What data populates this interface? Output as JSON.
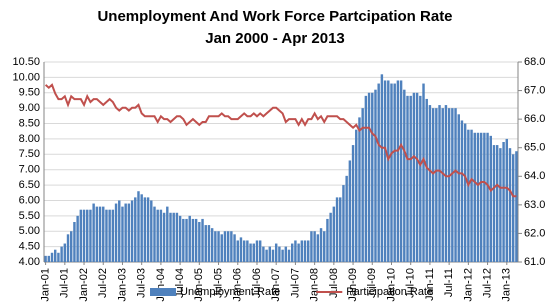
{
  "chart_data": {
    "type": "bar_line",
    "title": "Unemployment And Work Force Partcipation Rate",
    "subtitle": "Jan 2000 - Apr 2013",
    "categories": [
      "Jan-01",
      null,
      null,
      null,
      null,
      null,
      "Jul-01",
      null,
      null,
      null,
      null,
      null,
      "Jan-02",
      null,
      null,
      null,
      null,
      null,
      "Jul-02",
      null,
      null,
      null,
      null,
      null,
      "Jan-03",
      null,
      null,
      null,
      null,
      null,
      "Jul-03",
      null,
      null,
      null,
      null,
      null,
      "Jan-04",
      null,
      null,
      null,
      null,
      null,
      "Jul-04",
      null,
      null,
      null,
      null,
      null,
      "Jan-05",
      null,
      null,
      null,
      null,
      null,
      "Jul-05",
      null,
      null,
      null,
      null,
      null,
      "Jan-06",
      null,
      null,
      null,
      null,
      null,
      "Jul-06",
      null,
      null,
      null,
      null,
      null,
      "Jan-07",
      null,
      null,
      null,
      null,
      null,
      "Jul-07",
      null,
      null,
      null,
      null,
      null,
      "Jan-08",
      null,
      null,
      null,
      null,
      null,
      "Jul-08",
      null,
      null,
      null,
      null,
      null,
      "Jan-09",
      null,
      null,
      null,
      null,
      null,
      "Jul-09",
      null,
      null,
      null,
      null,
      null,
      "Jan-10",
      null,
      null,
      null,
      null,
      null,
      "Jul-10",
      null,
      null,
      null,
      null,
      null,
      "Jan-11",
      null,
      null,
      null,
      null,
      null,
      "Jul-11",
      null,
      null,
      null,
      null,
      null,
      "Jan-12",
      null,
      null,
      null,
      null,
      null,
      "Jul-12",
      null,
      null,
      null,
      null,
      null,
      "Jan-13",
      null,
      null,
      null
    ],
    "series": [
      {
        "name": "Unemployment Rate",
        "type": "bar",
        "color": "#4f81bd",
        "values": [
          4.2,
          4.2,
          4.3,
          4.4,
          4.3,
          4.5,
          4.6,
          4.9,
          5.0,
          5.3,
          5.5,
          5.7,
          5.7,
          5.7,
          5.7,
          5.9,
          5.8,
          5.8,
          5.8,
          5.7,
          5.7,
          5.7,
          5.9,
          6.0,
          5.8,
          5.9,
          5.9,
          6.0,
          6.1,
          6.3,
          6.2,
          6.1,
          6.1,
          6.0,
          5.8,
          5.7,
          5.7,
          5.6,
          5.8,
          5.6,
          5.6,
          5.6,
          5.5,
          5.4,
          5.4,
          5.5,
          5.4,
          5.4,
          5.3,
          5.4,
          5.2,
          5.2,
          5.1,
          5.0,
          5.0,
          4.9,
          5.0,
          5.0,
          5.0,
          4.9,
          4.7,
          4.8,
          4.7,
          4.7,
          4.6,
          4.6,
          4.7,
          4.7,
          4.5,
          4.4,
          4.5,
          4.4,
          4.6,
          4.5,
          4.4,
          4.5,
          4.4,
          4.6,
          4.7,
          4.6,
          4.7,
          4.7,
          4.7,
          5.0,
          5.0,
          4.9,
          5.1,
          5.0,
          5.4,
          5.6,
          5.8,
          6.1,
          6.1,
          6.5,
          6.8,
          7.3,
          7.8,
          8.3,
          8.7,
          9.0,
          9.4,
          9.5,
          9.5,
          9.6,
          9.8,
          10.1,
          9.9,
          9.9,
          9.8,
          9.8,
          9.9,
          9.9,
          9.6,
          9.4,
          9.4,
          9.5,
          9.5,
          9.4,
          9.8,
          9.3,
          9.1,
          9.0,
          9.0,
          9.1,
          9.0,
          9.1,
          9.0,
          9.0,
          9.0,
          8.8,
          8.6,
          8.5,
          8.3,
          8.3,
          8.2,
          8.2,
          8.2,
          8.2,
          8.2,
          8.1,
          7.8,
          7.8,
          7.7,
          7.9,
          8.0,
          7.7,
          7.5,
          7.6
        ]
      },
      {
        "name": "Participation Rate",
        "type": "line",
        "axis": "y2",
        "color": "#c0504d",
        "values": [
          67.2,
          67.1,
          67.2,
          66.9,
          66.7,
          66.7,
          66.8,
          66.5,
          66.8,
          66.7,
          66.7,
          66.7,
          66.5,
          66.8,
          66.6,
          66.7,
          66.7,
          66.6,
          66.5,
          66.6,
          66.7,
          66.6,
          66.4,
          66.3,
          66.4,
          66.4,
          66.3,
          66.4,
          66.4,
          66.5,
          66.2,
          66.1,
          66.1,
          66.1,
          66.1,
          65.9,
          66.1,
          66.0,
          66.0,
          65.9,
          66.0,
          66.1,
          66.1,
          66.0,
          65.8,
          65.9,
          66.0,
          65.9,
          65.8,
          65.9,
          65.9,
          66.1,
          66.1,
          66.1,
          66.1,
          66.2,
          66.1,
          66.1,
          66.0,
          66.0,
          66.0,
          66.1,
          66.2,
          66.1,
          66.1,
          66.2,
          66.1,
          66.2,
          66.1,
          66.2,
          66.3,
          66.4,
          66.4,
          66.3,
          66.2,
          65.9,
          66.0,
          66.0,
          66.0,
          65.8,
          66.0,
          65.8,
          66.0,
          66.0,
          66.2,
          66.0,
          66.1,
          65.9,
          66.1,
          66.1,
          66.1,
          66.1,
          66.0,
          66.0,
          65.9,
          65.8,
          65.7,
          65.8,
          65.6,
          65.7,
          65.7,
          65.7,
          65.5,
          65.4,
          65.1,
          65.0,
          65.0,
          64.6,
          64.8,
          64.9,
          64.9,
          65.1,
          64.9,
          64.6,
          64.6,
          64.7,
          64.6,
          64.4,
          64.6,
          64.3,
          64.2,
          64.1,
          64.2,
          64.2,
          64.1,
          64.0,
          64.0,
          64.1,
          64.2,
          64.1,
          64.1,
          64.0,
          63.7,
          63.9,
          63.8,
          63.7,
          63.8,
          63.8,
          63.7,
          63.5,
          63.6,
          63.7,
          63.6,
          63.6,
          63.6,
          63.5,
          63.3,
          63.3
        ]
      }
    ],
    "ylim": [
      4,
      10.5
    ],
    "yticks": [
      {
        "value": 4,
        "label": "4.00"
      },
      {
        "value": 4.5,
        "label": "4.50"
      },
      {
        "value": 5,
        "label": "5.00"
      },
      {
        "value": 5.5,
        "label": "5.50"
      },
      {
        "value": 6,
        "label": "6.00"
      },
      {
        "value": 6.5,
        "label": "6.50"
      },
      {
        "value": 7,
        "label": "7.00"
      },
      {
        "value": 7.5,
        "label": "7.50"
      },
      {
        "value": 8,
        "label": "8.00"
      },
      {
        "value": 8.5,
        "label": "8.50"
      },
      {
        "value": 9,
        "label": "9.00"
      },
      {
        "value": 9.5,
        "label": "9.50"
      },
      {
        "value": 10,
        "label": "10.00"
      },
      {
        "value": 10.5,
        "label": "10.50"
      }
    ],
    "y2lim": [
      61,
      68
    ],
    "y2ticks": [
      {
        "value": 61,
        "label": "61.0"
      },
      {
        "value": 62,
        "label": "62.0"
      },
      {
        "value": 63,
        "label": "63.0"
      },
      {
        "value": 64,
        "label": "64.0"
      },
      {
        "value": 65,
        "label": "65.0"
      },
      {
        "value": 66,
        "label": "66.0"
      },
      {
        "value": 67,
        "label": "67.0"
      },
      {
        "value": 68,
        "label": "68.0"
      }
    ],
    "grid": true,
    "legend": "bottom"
  }
}
